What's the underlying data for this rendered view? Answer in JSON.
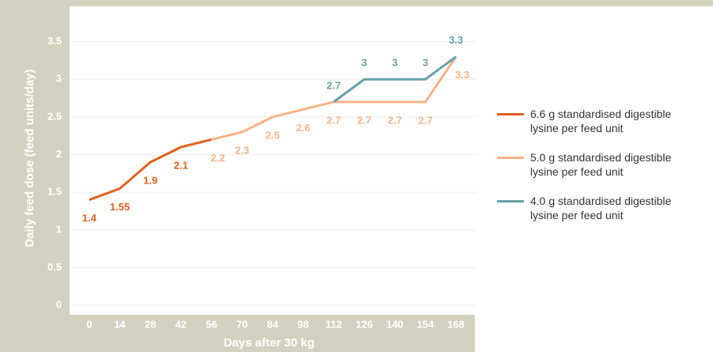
{
  "chart_data": {
    "type": "line",
    "x_label": "Days after 30 kg",
    "y_label": "Daily feed dose (feed units/day)",
    "xlim": [
      -9,
      177
    ],
    "ylim": [
      0,
      4
    ],
    "xticks": [
      0,
      14,
      28,
      42,
      56,
      70,
      84,
      98,
      112,
      126,
      140,
      154,
      168
    ],
    "yticks": [
      0,
      0.5,
      1,
      1.5,
      2,
      2.5,
      3,
      3.5
    ],
    "grid": true,
    "legend": "right",
    "series": [
      {
        "name": "6.6 g standardised digestible lysine per feed unit",
        "color": "#e1601f",
        "x": [
          0,
          14,
          28,
          42,
          56
        ],
        "values": [
          1.4,
          1.55,
          1.9,
          2.1,
          2.2
        ]
      },
      {
        "name": "5.0 g standardised digestible lysine per feed unit",
        "color": "#f6b286",
        "x": [
          56,
          70,
          84,
          98,
          112,
          126,
          140,
          154,
          168
        ],
        "values": [
          2.2,
          2.3,
          2.5,
          2.6,
          2.7,
          2.7,
          2.7,
          2.7,
          3.3
        ]
      },
      {
        "name": "4.0 g standardised digestible lysine per feed unit",
        "color": "#6a9fab",
        "x": [
          112,
          126,
          140,
          154,
          168
        ],
        "values": [
          2.7,
          3,
          3,
          3,
          3.3
        ]
      }
    ]
  }
}
